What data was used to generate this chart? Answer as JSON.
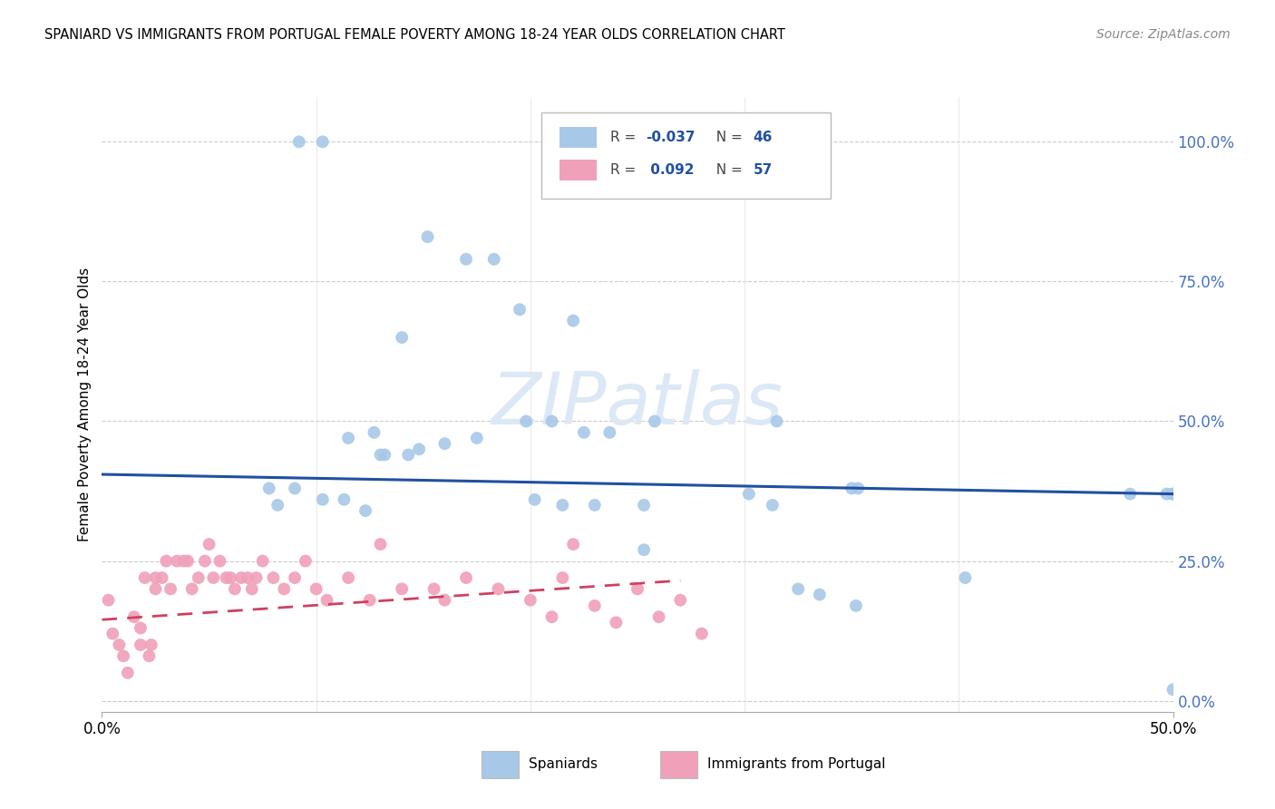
{
  "title": "SPANIARD VS IMMIGRANTS FROM PORTUGAL FEMALE POVERTY AMONG 18-24 YEAR OLDS CORRELATION CHART",
  "source": "Source: ZipAtlas.com",
  "ylabel": "Female Poverty Among 18-24 Year Olds",
  "color_blue": "#a8c8e8",
  "color_pink": "#f0a0b8",
  "color_blue_line": "#2050a0",
  "color_pink_line": "#d04060",
  "xmin": 0.0,
  "xmax": 0.5,
  "ymin": -0.02,
  "ymax": 1.08,
  "sp_x": [
    0.092,
    0.103,
    0.152,
    0.17,
    0.183,
    0.14,
    0.22,
    0.115,
    0.127,
    0.148,
    0.16,
    0.175,
    0.13,
    0.198,
    0.21,
    0.225,
    0.237,
    0.258,
    0.315,
    0.078,
    0.09,
    0.103,
    0.113,
    0.353,
    0.202,
    0.082,
    0.215,
    0.23,
    0.253,
    0.313,
    0.325,
    0.335,
    0.352,
    0.403,
    0.48,
    0.497,
    0.132,
    0.143,
    0.302,
    0.35,
    0.123,
    0.195,
    0.5,
    0.5,
    0.253,
    0.5
  ],
  "sp_y": [
    1.0,
    1.0,
    0.83,
    0.79,
    0.79,
    0.65,
    0.68,
    0.47,
    0.48,
    0.45,
    0.46,
    0.47,
    0.44,
    0.5,
    0.5,
    0.48,
    0.48,
    0.5,
    0.5,
    0.38,
    0.38,
    0.36,
    0.36,
    0.38,
    0.36,
    0.35,
    0.35,
    0.35,
    0.35,
    0.35,
    0.2,
    0.19,
    0.17,
    0.22,
    0.37,
    0.37,
    0.44,
    0.44,
    0.37,
    0.38,
    0.34,
    0.7,
    0.37,
    0.37,
    0.27,
    0.02
  ],
  "pt_x": [
    0.003,
    0.005,
    0.008,
    0.01,
    0.012,
    0.015,
    0.018,
    0.018,
    0.02,
    0.022,
    0.023,
    0.025,
    0.025,
    0.028,
    0.03,
    0.032,
    0.035,
    0.038,
    0.04,
    0.042,
    0.045,
    0.048,
    0.05,
    0.052,
    0.055,
    0.058,
    0.06,
    0.062,
    0.065,
    0.068,
    0.07,
    0.072,
    0.075,
    0.08,
    0.085,
    0.09,
    0.095,
    0.1,
    0.105,
    0.115,
    0.125,
    0.13,
    0.14,
    0.155,
    0.16,
    0.17,
    0.185,
    0.2,
    0.21,
    0.215,
    0.22,
    0.23,
    0.24,
    0.25,
    0.26,
    0.27,
    0.28
  ],
  "pt_y": [
    0.18,
    0.12,
    0.1,
    0.08,
    0.05,
    0.15,
    0.13,
    0.1,
    0.22,
    0.08,
    0.1,
    0.2,
    0.22,
    0.22,
    0.25,
    0.2,
    0.25,
    0.25,
    0.25,
    0.2,
    0.22,
    0.25,
    0.28,
    0.22,
    0.25,
    0.22,
    0.22,
    0.2,
    0.22,
    0.22,
    0.2,
    0.22,
    0.25,
    0.22,
    0.2,
    0.22,
    0.25,
    0.2,
    0.18,
    0.22,
    0.18,
    0.28,
    0.2,
    0.2,
    0.18,
    0.22,
    0.2,
    0.18,
    0.15,
    0.22,
    0.28,
    0.17,
    0.14,
    0.2,
    0.15,
    0.18,
    0.12
  ]
}
